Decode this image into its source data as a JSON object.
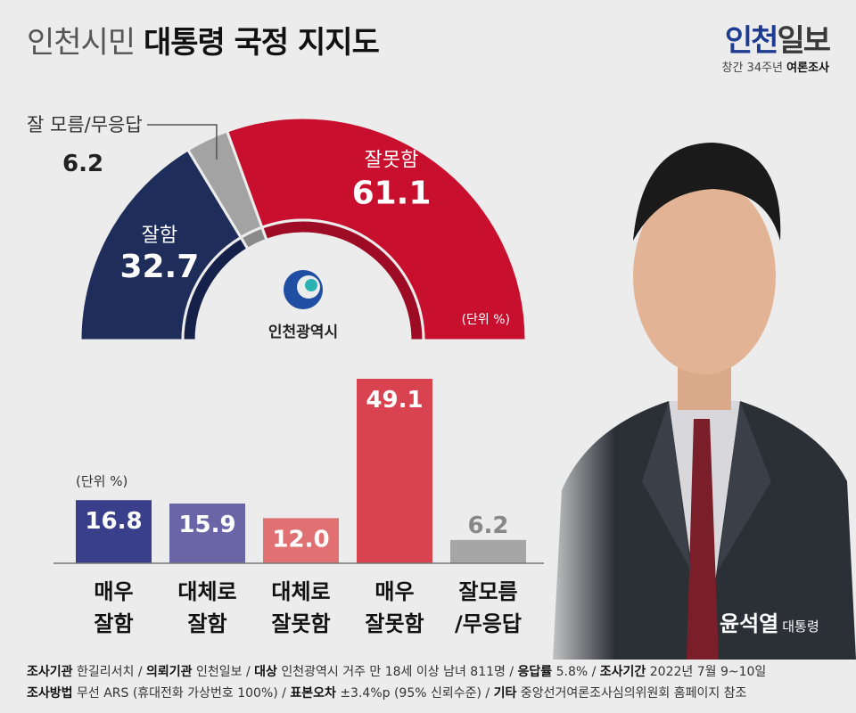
{
  "header": {
    "title_light": "인천시민",
    "title_bold": "대통령 국정 지지도",
    "brand_a": "인천",
    "brand_b": "일보",
    "brand_tag": "창간 34주년",
    "brand_tag_bold": "여론조사"
  },
  "colors": {
    "navy": "#1e2d5a",
    "red": "#c8102e",
    "gray": "#a3a3a3",
    "bar_strong_good": "#3a3f8c",
    "bar_good": "#6a65a6",
    "bar_bad": "#e07072",
    "bar_strong_bad": "#d8434f",
    "bar_neutral": "#a6a6a6"
  },
  "emblem_label": "인천광역시",
  "person": {
    "name": "윤석열",
    "title": "대통령"
  },
  "chart_data": [
    {
      "type": "pie",
      "style": "half-donut",
      "unit_label": "(단위 %)",
      "slices": [
        {
          "label": "잘함",
          "value": 32.7
        },
        {
          "label": "잘 모름/무응답",
          "value": 6.2
        },
        {
          "label": "잘못함",
          "value": 61.1
        }
      ]
    },
    {
      "type": "bar",
      "unit_label": "(단위 %)",
      "categories": [
        "매우\n잘함",
        "대체로\n잘함",
        "대체로\n잘못함",
        "매우\n잘못함",
        "잘모름\n/무응답"
      ],
      "values": [
        16.8,
        15.9,
        12.0,
        49.1,
        6.2
      ],
      "value_labels": [
        "16.8",
        "15.9",
        "12.0",
        "49.1",
        "6.2"
      ]
    }
  ],
  "footer": {
    "line1": [
      {
        "k": "조사기관",
        "v": " 한길리서치 / "
      },
      {
        "k": "의뢰기관",
        "v": " 인천일보 / "
      },
      {
        "k": "대상",
        "v": " 인천광역시 거주 만 18세 이상 남녀 811명 / "
      },
      {
        "k": "응답률",
        "v": " 5.8% / "
      },
      {
        "k": "조사기간",
        "v": " 2022년 7월 9~10일"
      }
    ],
    "line2": [
      {
        "k": "조사방법",
        "v": " 무선 ARS (휴대전화 가상번호 100%) / "
      },
      {
        "k": "표본오차",
        "v": " ±3.4%p (95% 신뢰수준) / "
      },
      {
        "k": "기타",
        "v": " 중앙선거여론조사심의위원회 홈페이지 참조"
      }
    ]
  }
}
